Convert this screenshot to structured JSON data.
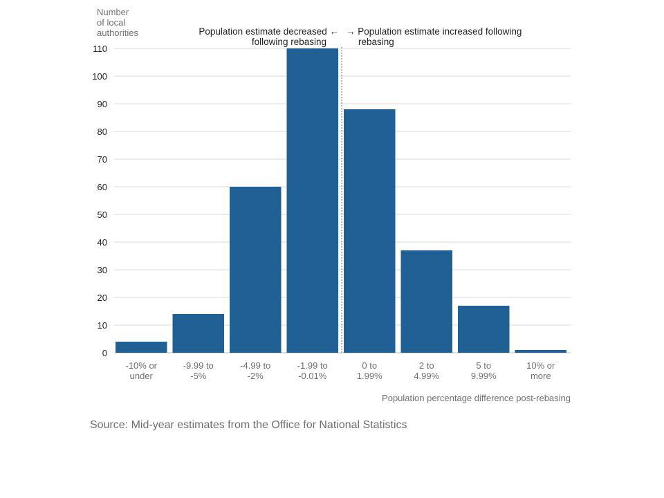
{
  "chart_data": {
    "type": "bar",
    "ylabel": [
      "Number",
      "of local",
      "authorities"
    ],
    "xlabel": "Population percentage difference post-rebasing",
    "categories": [
      [
        "-10% or",
        "under"
      ],
      [
        "-9.99 to",
        "-5%"
      ],
      [
        "-4.99 to",
        "-2%"
      ],
      [
        "-1.99 to",
        "-0.01%"
      ],
      [
        "0 to",
        "1.99%"
      ],
      [
        "2 to",
        "4.99%"
      ],
      [
        "5 to",
        "9.99%"
      ],
      [
        "10% or",
        "more"
      ]
    ],
    "values": [
      4,
      14,
      60,
      110,
      88,
      37,
      17,
      1
    ],
    "ylim": [
      0,
      110
    ],
    "yticks": [
      0,
      10,
      20,
      30,
      40,
      50,
      60,
      70,
      80,
      90,
      100,
      110
    ],
    "grid": true,
    "divider_between": [
      3,
      4
    ],
    "annotations": {
      "left": [
        "Population estimate decreased ←",
        "following rebasing"
      ],
      "right": [
        "→ Population estimate increased following",
        "rebasing"
      ]
    }
  },
  "colors": {
    "bar": "#206095",
    "grid": "#d9d9d9",
    "divider": "#a8b3bd"
  },
  "source": "Source: Mid-year estimates from the Office for National Statistics"
}
